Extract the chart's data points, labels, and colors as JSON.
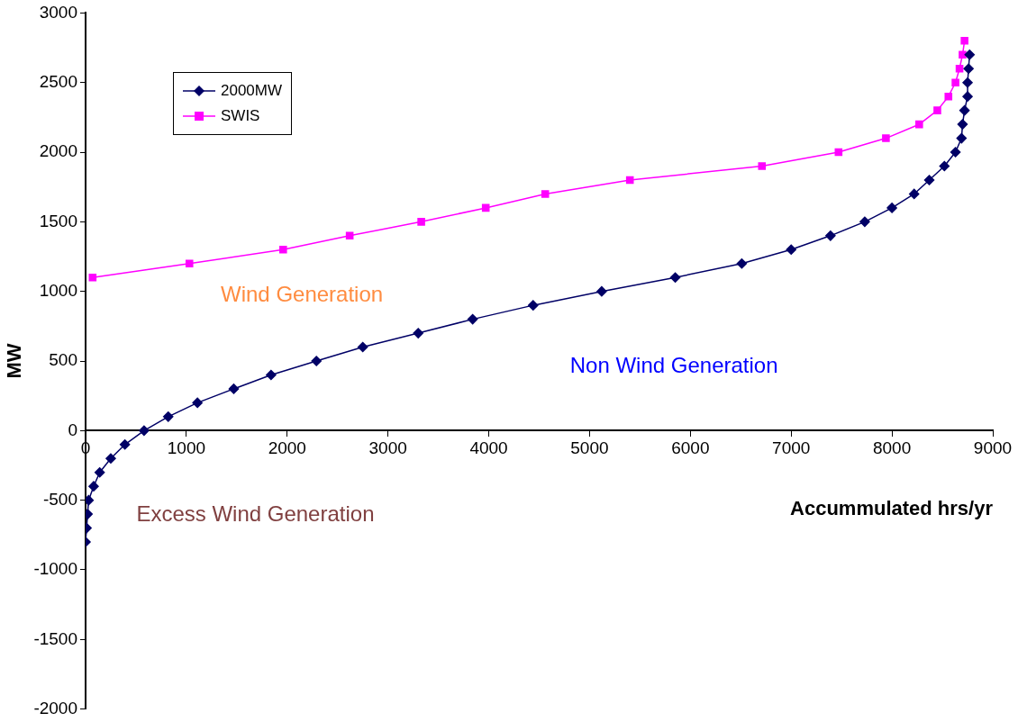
{
  "chart_data": {
    "type": "line",
    "xlabel": "Accummulated hrs/yr",
    "ylabel": "MW",
    "xlim": [
      0,
      9000
    ],
    "xticks": [
      0,
      1000,
      2000,
      3000,
      4000,
      5000,
      6000,
      7000,
      8000,
      9000
    ],
    "ylim": [
      -2000,
      3000
    ],
    "yticks": [
      -2000,
      -1500,
      -1000,
      -500,
      0,
      500,
      1000,
      1500,
      2000,
      2500,
      3000
    ],
    "grid": false,
    "legend": "top left",
    "line_style": "solid",
    "series": [
      {
        "name": "2000MW",
        "color": "#000066",
        "marker": "diamond",
        "x": [
          0,
          10,
          20,
          30,
          80,
          140,
          250,
          390,
          580,
          820,
          1110,
          1470,
          1840,
          2290,
          2750,
          3300,
          3840,
          4440,
          5120,
          5850,
          6510,
          7000,
          7390,
          7730,
          8000,
          8220,
          8370,
          8520,
          8630,
          8690,
          8700,
          8720,
          8750,
          8750,
          8760,
          8770
        ],
        "values": [
          -800,
          -700,
          -600,
          -500,
          -400,
          -300,
          -200,
          -100,
          0,
          100,
          200,
          300,
          400,
          500,
          600,
          700,
          800,
          900,
          1000,
          1100,
          1200,
          1300,
          1400,
          1500,
          1600,
          1700,
          1800,
          1900,
          2000,
          2100,
          2200,
          2300,
          2400,
          2500,
          2600,
          2700
        ]
      },
      {
        "name": "SWIS",
        "color": "#ff00ff",
        "marker": "square",
        "x": [
          70,
          1030,
          1960,
          2620,
          3330,
          3970,
          4560,
          5400,
          6710,
          7470,
          7940,
          8270,
          8450,
          8560,
          8630,
          8670,
          8700,
          8720
        ],
        "values": [
          1100,
          1200,
          1300,
          1400,
          1500,
          1600,
          1700,
          1800,
          1900,
          2000,
          2100,
          2200,
          2300,
          2400,
          2500,
          2600,
          2700,
          2800
        ]
      }
    ],
    "annotations": [
      "Wind Generation",
      "Non Wind Generation",
      "Excess Wind Generation"
    ]
  }
}
